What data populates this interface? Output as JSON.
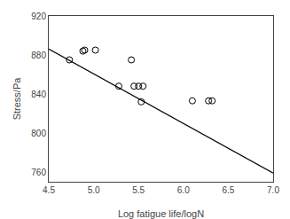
{
  "chart_data": {
    "type": "scatter",
    "xlabel": "Log fatigue life/logN",
    "ylabel": "Stress/Pa",
    "series": [
      {
        "type": "line",
        "color": "#000000",
        "line_style": "solid",
        "x": [
          4.5,
          7.0
        ],
        "values": [
          886,
          759
        ]
      },
      {
        "type": "scatter",
        "color": "#000000",
        "marker": "open circle",
        "x": [
          4.73,
          4.88,
          4.9,
          5.02,
          5.28,
          5.42,
          5.45,
          5.5,
          5.53,
          5.55,
          6.1,
          6.28,
          6.32
        ],
        "values": [
          875,
          884,
          885,
          885,
          848,
          875,
          848,
          848,
          832,
          848,
          833,
          833,
          833
        ]
      }
    ],
    "xlim": [
      4.5,
      7.0
    ],
    "ylim": [
      750,
      920
    ],
    "xticks": [
      4.5,
      {
        "value": 5,
        "label": "5.0"
      },
      5.5,
      {
        "value": 6,
        "label": "6.0"
      },
      6.5,
      {
        "value": 7,
        "label": "7.0"
      }
    ],
    "yticks": [
      760,
      800,
      840,
      880,
      920
    ],
    "grid": false
  }
}
